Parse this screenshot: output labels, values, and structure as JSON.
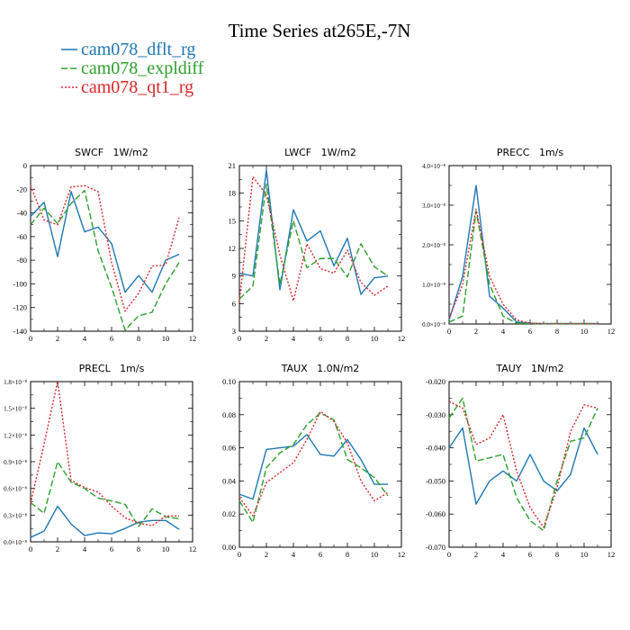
{
  "figure": {
    "title": "Time Series at265E,-7N",
    "legend": [
      {
        "label": "cam078_dflt_rg",
        "color": "#1f77b4",
        "dash": "solid"
      },
      {
        "label": "cam078_expldiff",
        "color": "#2ca02c",
        "dash": "dashed"
      },
      {
        "label": "cam078_qt1_rg",
        "color": "#d62728",
        "dash": "dotted"
      }
    ]
  },
  "chart_data": [
    {
      "type": "line",
      "title": "SWCF   1W/m2",
      "x": [
        0,
        1,
        2,
        3,
        4,
        5,
        6,
        7,
        8,
        9,
        10,
        11
      ],
      "xlim": [
        0,
        12
      ],
      "xticks": [
        "0",
        "2",
        "4",
        "6",
        "8",
        "10",
        "12"
      ],
      "xtick_values": [
        0,
        2,
        4,
        6,
        8,
        10,
        12
      ],
      "ylim": [
        -140,
        0
      ],
      "yticks": [
        "-140",
        "-120",
        "-100",
        "-80",
        "-60",
        "-40",
        "-20",
        "0"
      ],
      "ytick_values": [
        -140,
        -120,
        -100,
        -80,
        -60,
        -40,
        -20,
        0
      ],
      "series": [
        {
          "name": "cam078_dflt_rg",
          "values": [
            -43,
            -31,
            -77,
            -22,
            -56,
            -52,
            -66,
            -107,
            -93,
            -107,
            -80,
            -75
          ]
        },
        {
          "name": "cam078_expldiff",
          "values": [
            -50,
            -36,
            -49,
            -32,
            -21,
            -72,
            -103,
            -139,
            -127,
            -124,
            -100,
            -82
          ]
        },
        {
          "name": "cam078_qt1_rg",
          "values": [
            -17,
            -46,
            -50,
            -18,
            -17,
            -22,
            -82,
            -123,
            -108,
            -85,
            -84,
            -44
          ]
        }
      ]
    },
    {
      "type": "line",
      "title": "LWCF   1W/m2",
      "x": [
        0,
        1,
        2,
        3,
        4,
        5,
        6,
        7,
        8,
        9,
        10,
        11
      ],
      "xlim": [
        0,
        12
      ],
      "xticks": [
        "0",
        "2",
        "4",
        "6",
        "8",
        "10",
        "12"
      ],
      "xtick_values": [
        0,
        2,
        4,
        6,
        8,
        10,
        12
      ],
      "ylim": [
        3,
        21
      ],
      "yticks": [
        "3",
        "6",
        "9",
        "12",
        "15",
        "18",
        "21"
      ],
      "ytick_values": [
        3,
        6,
        9,
        12,
        15,
        18,
        21
      ],
      "series": [
        {
          "name": "cam078_dflt_rg",
          "values": [
            9.3,
            9.0,
            20.5,
            7.5,
            16.2,
            12.8,
            13.9,
            10.1,
            13.1,
            7.0,
            8.8,
            9.0
          ]
        },
        {
          "name": "cam078_expldiff",
          "values": [
            6.5,
            7.9,
            19.0,
            8.1,
            15.0,
            9.9,
            10.9,
            10.9,
            8.9,
            12.5,
            10.0,
            9.0
          ]
        },
        {
          "name": "cam078_qt1_rg",
          "values": [
            6.2,
            19.8,
            17.8,
            11.3,
            6.3,
            12.5,
            9.8,
            9.3,
            11.8,
            8.3,
            6.9,
            7.9
          ]
        }
      ]
    },
    {
      "type": "line",
      "title": "PRECC   1m/s",
      "x": [
        0,
        1,
        2,
        3,
        4,
        5,
        6,
        7,
        8,
        9,
        10,
        11
      ],
      "xlim": [
        0,
        12
      ],
      "xticks": [
        "0",
        "2",
        "4",
        "6",
        "8",
        "10",
        "12"
      ],
      "xtick_values": [
        0,
        2,
        4,
        6,
        8,
        10,
        12
      ],
      "ylim": [
        0,
        4e-08
      ],
      "yticks": [
        "0.0×10⁻⁸",
        "1.0×10⁻⁸",
        "2.0×10⁻⁸",
        "3.0×10⁻⁸",
        "4.0×10⁻⁸"
      ],
      "ytick_values": [
        0,
        1e-08,
        2e-08,
        3e-08,
        4e-08
      ],
      "series": [
        {
          "name": "cam078_dflt_rg",
          "values": [
            1e-09,
            1.2e-08,
            3.5e-08,
            7e-09,
            4e-09,
            5e-10,
            2e-10,
            1e-10,
            1e-10,
            1e-10,
            1e-10,
            1e-10
          ]
        },
        {
          "name": "cam078_expldiff",
          "values": [
            5e-10,
            2e-09,
            2.85e-08,
            1e-08,
            2e-09,
            2e-10,
            1e-10,
            1e-10,
            1e-10,
            1e-10,
            1e-10,
            1e-10
          ]
        },
        {
          "name": "cam078_qt1_rg",
          "values": [
            1.5e-09,
            1e-08,
            2.9e-08,
            1.2e-08,
            5e-09,
            1e-09,
            2e-10,
            1e-10,
            1e-10,
            1e-10,
            1e-10,
            1e-10
          ]
        }
      ]
    },
    {
      "type": "line",
      "title": "PRECL   1m/s",
      "x": [
        0,
        1,
        2,
        3,
        4,
        5,
        6,
        7,
        8,
        9,
        10,
        11
      ],
      "xlim": [
        0,
        12
      ],
      "xticks": [
        "0",
        "2",
        "4",
        "6",
        "8",
        "10",
        "12"
      ],
      "xtick_values": [
        0,
        2,
        4,
        6,
        8,
        10,
        12
      ],
      "ylim": [
        0,
        1.8e-08
      ],
      "yticks": [
        "0.0×10⁻⁸",
        "0.3×10⁻⁸",
        "0.6×10⁻⁸",
        "0.9×10⁻⁸",
        "1.2×10⁻⁸",
        "1.5×10⁻⁸",
        "1.8×10⁻⁸"
      ],
      "ytick_values": [
        0,
        3e-09,
        6e-09,
        9e-09,
        1.2e-08,
        1.5e-08,
        1.8e-08
      ],
      "series": [
        {
          "name": "cam078_dflt_rg",
          "values": [
            5e-10,
            1.2e-09,
            4e-09,
            2e-09,
            7e-10,
            1e-09,
            9e-10,
            1.5e-09,
            2.2e-09,
            2.4e-09,
            2.4e-09,
            1.4e-09
          ]
        },
        {
          "name": "cam078_expldiff",
          "values": [
            4.4e-09,
            3.2e-09,
            9e-09,
            6.7e-09,
            6e-09,
            4.9e-09,
            4.6e-09,
            4.2e-09,
            1.7e-09,
            3.7e-09,
            2.8e-09,
            2.6e-09
          ]
        },
        {
          "name": "cam078_qt1_rg",
          "values": [
            4.3e-09,
            1.1e-08,
            1.8e-08,
            6.9e-09,
            6.1e-09,
            5.6e-09,
            4e-09,
            2.7e-09,
            2.1e-09,
            1.8e-09,
            2.9e-09,
            2.9e-09
          ]
        }
      ]
    },
    {
      "type": "line",
      "title": "TAUX   1.0N/m2",
      "x": [
        0,
        1,
        2,
        3,
        4,
        5,
        6,
        7,
        8,
        9,
        10,
        11
      ],
      "xlim": [
        0,
        12
      ],
      "xticks": [
        "0",
        "2",
        "4",
        "6",
        "8",
        "10",
        "12"
      ],
      "xtick_values": [
        0,
        2,
        4,
        6,
        8,
        10,
        12
      ],
      "ylim": [
        0,
        0.1
      ],
      "yticks": [
        "0.00",
        "0.02",
        "0.04",
        "0.06",
        "0.08",
        "0.10"
      ],
      "ytick_values": [
        0,
        0.02,
        0.04,
        0.06,
        0.08,
        0.1
      ],
      "series": [
        {
          "name": "cam078_dflt_rg",
          "values": [
            0.032,
            0.029,
            0.059,
            0.06,
            0.061,
            0.068,
            0.056,
            0.055,
            0.065,
            0.053,
            0.038,
            0.038
          ]
        },
        {
          "name": "cam078_expldiff",
          "values": [
            0.028,
            0.015,
            0.048,
            0.057,
            0.062,
            0.074,
            0.081,
            0.077,
            0.053,
            0.048,
            0.042,
            0.031
          ]
        },
        {
          "name": "cam078_qt1_rg",
          "values": [
            0.03,
            0.019,
            0.039,
            0.045,
            0.051,
            0.065,
            0.082,
            0.076,
            0.063,
            0.04,
            0.028,
            0.033
          ]
        }
      ]
    },
    {
      "type": "line",
      "title": "TAUY   1N/m2",
      "x": [
        0,
        1,
        2,
        3,
        4,
        5,
        6,
        7,
        8,
        9,
        10,
        11
      ],
      "xlim": [
        0,
        12
      ],
      "xticks": [
        "0",
        "2",
        "4",
        "6",
        "8",
        "10",
        "12"
      ],
      "xtick_values": [
        0,
        2,
        4,
        6,
        8,
        10,
        12
      ],
      "ylim": [
        -0.07,
        -0.02
      ],
      "yticks": [
        "-0.070",
        "-0.060",
        "-0.050",
        "-0.040",
        "-0.030",
        "-0.020"
      ],
      "ytick_values": [
        -0.07,
        -0.06,
        -0.05,
        -0.04,
        -0.03,
        -0.02
      ],
      "series": [
        {
          "name": "cam078_dflt_rg",
          "values": [
            -0.04,
            -0.034,
            -0.057,
            -0.05,
            -0.047,
            -0.05,
            -0.042,
            -0.05,
            -0.053,
            -0.048,
            -0.034,
            -0.042
          ]
        },
        {
          "name": "cam078_expldiff",
          "values": [
            -0.031,
            -0.025,
            -0.044,
            -0.043,
            -0.042,
            -0.055,
            -0.062,
            -0.065,
            -0.05,
            -0.038,
            -0.037,
            -0.028
          ]
        },
        {
          "name": "cam078_qt1_rg",
          "values": [
            -0.026,
            -0.028,
            -0.039,
            -0.037,
            -0.03,
            -0.047,
            -0.058,
            -0.064,
            -0.052,
            -0.035,
            -0.027,
            -0.028
          ]
        }
      ]
    }
  ]
}
